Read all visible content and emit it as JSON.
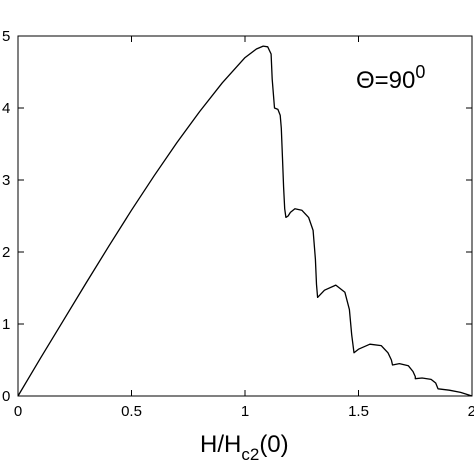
{
  "chart_data": {
    "type": "line",
    "title": "",
    "xlabel": "",
    "ylabel": "",
    "xlabel_parts": {
      "main": "H/H",
      "sub": "c2",
      "tail": "(0)"
    },
    "annotation": {
      "main": "Θ=90",
      "sup": "0",
      "placement": "top-right"
    },
    "xlim": [
      0,
      2
    ],
    "ylim": [
      0,
      5
    ],
    "xticks": [
      "0",
      "0.5",
      "1",
      "1.5",
      "2"
    ],
    "yticks": [
      "0",
      "1",
      "2",
      "3",
      "4",
      "5"
    ],
    "grid": false,
    "legend": "none",
    "line_color": "#000000",
    "series": [
      {
        "x": [
          0,
          0.1,
          0.2,
          0.3,
          0.4,
          0.5,
          0.6,
          0.7,
          0.8,
          0.9,
          1.0,
          1.05,
          1.08,
          1.1,
          1.115,
          1.12,
          1.13,
          1.145,
          1.155,
          1.16,
          1.165,
          1.17,
          1.175,
          1.18,
          1.19,
          1.2,
          1.22,
          1.25,
          1.28,
          1.3,
          1.31,
          1.315,
          1.32,
          1.32,
          1.35,
          1.4,
          1.44,
          1.46,
          1.47,
          1.48,
          1.48,
          1.5,
          1.55,
          1.6,
          1.63,
          1.645,
          1.65,
          1.65,
          1.68,
          1.72,
          1.74,
          1.75,
          1.75,
          1.78,
          1.82,
          1.84,
          1.85,
          1.85,
          1.9,
          1.95,
          2.0
        ],
        "y": [
          0,
          0.53,
          1.05,
          1.57,
          2.08,
          2.58,
          3.06,
          3.52,
          3.95,
          4.35,
          4.7,
          4.82,
          4.86,
          4.85,
          4.75,
          4.4,
          4.0,
          3.98,
          3.9,
          3.72,
          3.3,
          2.9,
          2.6,
          2.48,
          2.5,
          2.55,
          2.6,
          2.58,
          2.48,
          2.3,
          1.9,
          1.55,
          1.37,
          1.37,
          1.47,
          1.54,
          1.44,
          1.2,
          0.85,
          0.6,
          0.6,
          0.65,
          0.72,
          0.7,
          0.6,
          0.5,
          0.43,
          0.43,
          0.45,
          0.42,
          0.34,
          0.27,
          0.24,
          0.25,
          0.23,
          0.18,
          0.1,
          0.1,
          0.08,
          0.05,
          0.0
        ]
      }
    ]
  }
}
